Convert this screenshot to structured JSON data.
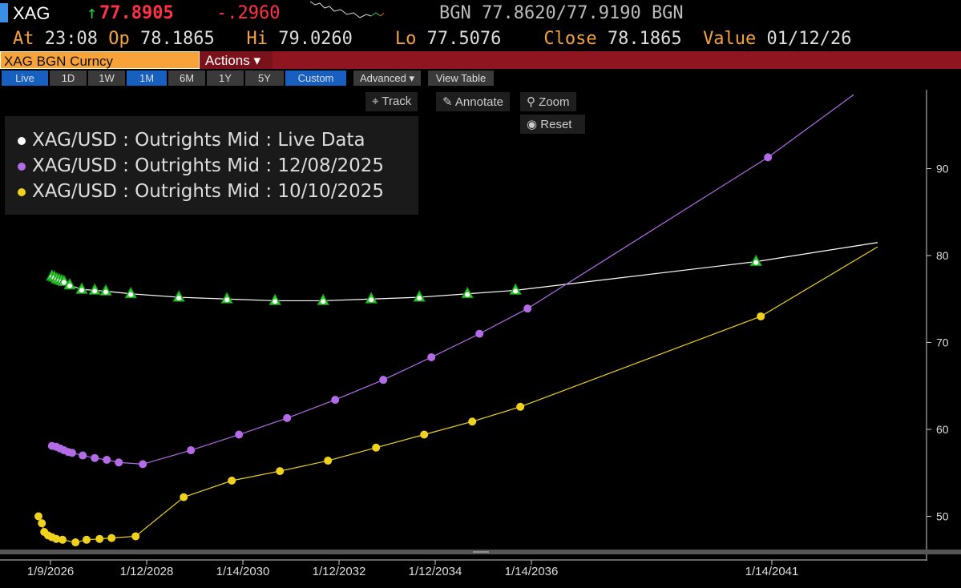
{
  "header": {
    "ticker": "XAG",
    "arrow": "↑",
    "last": "77.8905",
    "change": "-.2960",
    "bid_src": "BGN",
    "bid": "77.8620",
    "ask": "77.9190",
    "ask_src": "BGN",
    "at_label": "At",
    "at": "23:08",
    "op_label": "Op",
    "op": "78.1865",
    "hi_label": "Hi",
    "hi": "79.0260",
    "lo_label": "Lo",
    "lo": "77.5076",
    "close_label": "Close",
    "close": "78.1865",
    "value_label": "Value",
    "value": "01/12/26"
  },
  "security": "XAG BGN Curncy",
  "actions": "Actions ▾",
  "ranges": [
    "Live",
    "1D",
    "1W",
    "1M",
    "6M",
    "1Y",
    "5Y",
    "Custom"
  ],
  "advanced": "Advanced ▾",
  "view_table": "View Table",
  "controls": {
    "track": "Track",
    "annotate": "Annotate",
    "zoom": "Zoom",
    "reset": "Reset"
  },
  "chart_data": {
    "type": "line",
    "xlabel": "",
    "ylabel": "",
    "xticks": [
      {
        "label": "1/9/2026",
        "x": 2026.0
      },
      {
        "label": "1/12/2028",
        "x": 2028.0
      },
      {
        "label": "1/14/2030",
        "x": 2030.0
      },
      {
        "label": "1/12/2032",
        "x": 2032.0
      },
      {
        "label": "1/12/2034",
        "x": 2034.0
      },
      {
        "label": "1/14/2036",
        "x": 2036.0
      },
      {
        "label": "1/14/2041",
        "x": 2041.0
      }
    ],
    "yticks": [
      50,
      60,
      70,
      80,
      90
    ],
    "xlim": [
      2025.0,
      2043.2
    ],
    "ylim": [
      46,
      100
    ],
    "legend": "top-left",
    "series": [
      {
        "name": "XAG/USD : Outrights Mid : Live Data",
        "color": "#ffffff",
        "marker": "triangle",
        "marker_color": "#2ecc2e",
        "x": [
          2026.03,
          2026.08,
          2026.13,
          2026.18,
          2026.23,
          2026.28,
          2026.4,
          2026.65,
          2026.92,
          2027.15,
          2027.67,
          2028.67,
          2029.67,
          2030.67,
          2031.67,
          2032.67,
          2033.67,
          2034.67,
          2035.67,
          2040.67
        ],
        "y": [
          77.6,
          77.5,
          77.3,
          77.2,
          77.1,
          77.0,
          76.6,
          76.1,
          76.0,
          75.9,
          75.6,
          75.2,
          75.0,
          74.8,
          74.8,
          75.0,
          75.2,
          75.6,
          76.0,
          79.3
        ],
        "line_end": [
          2043.2,
          81.5
        ]
      },
      {
        "name": "XAG/USD : Outrights Mid : 12/08/2025",
        "color": "#b36be8",
        "marker": "circle",
        "x": [
          2026.03,
          2026.12,
          2026.2,
          2026.28,
          2026.37,
          2026.45,
          2026.67,
          2026.92,
          2027.17,
          2027.42,
          2027.92,
          2028.92,
          2029.92,
          2030.92,
          2031.92,
          2032.92,
          2033.92,
          2034.92,
          2035.92,
          2040.92
        ],
        "y": [
          58.1,
          58.0,
          57.8,
          57.6,
          57.4,
          57.3,
          57.0,
          56.7,
          56.5,
          56.2,
          56.0,
          57.6,
          59.4,
          61.3,
          63.4,
          65.7,
          68.3,
          71.0,
          73.9,
          91.3
        ],
        "line_end": [
          2042.7,
          98.5
        ]
      },
      {
        "name": "XAG/USD : Outrights Mid : 10/10/2025",
        "color": "#f0d21e",
        "marker": "circle",
        "x": [
          2025.75,
          2025.82,
          2025.87,
          2025.95,
          2026.03,
          2026.12,
          2026.25,
          2026.52,
          2026.75,
          2027.02,
          2027.27,
          2027.77,
          2028.77,
          2029.77,
          2030.77,
          2031.77,
          2032.77,
          2033.77,
          2034.77,
          2035.77,
          2040.77
        ],
        "y": [
          50.0,
          49.2,
          48.2,
          47.8,
          47.6,
          47.4,
          47.3,
          47.0,
          47.3,
          47.4,
          47.5,
          47.7,
          52.2,
          54.1,
          55.2,
          56.4,
          57.9,
          59.4,
          60.9,
          62.6,
          73.0
        ],
        "line_end": [
          2043.2,
          81.0
        ]
      }
    ]
  }
}
